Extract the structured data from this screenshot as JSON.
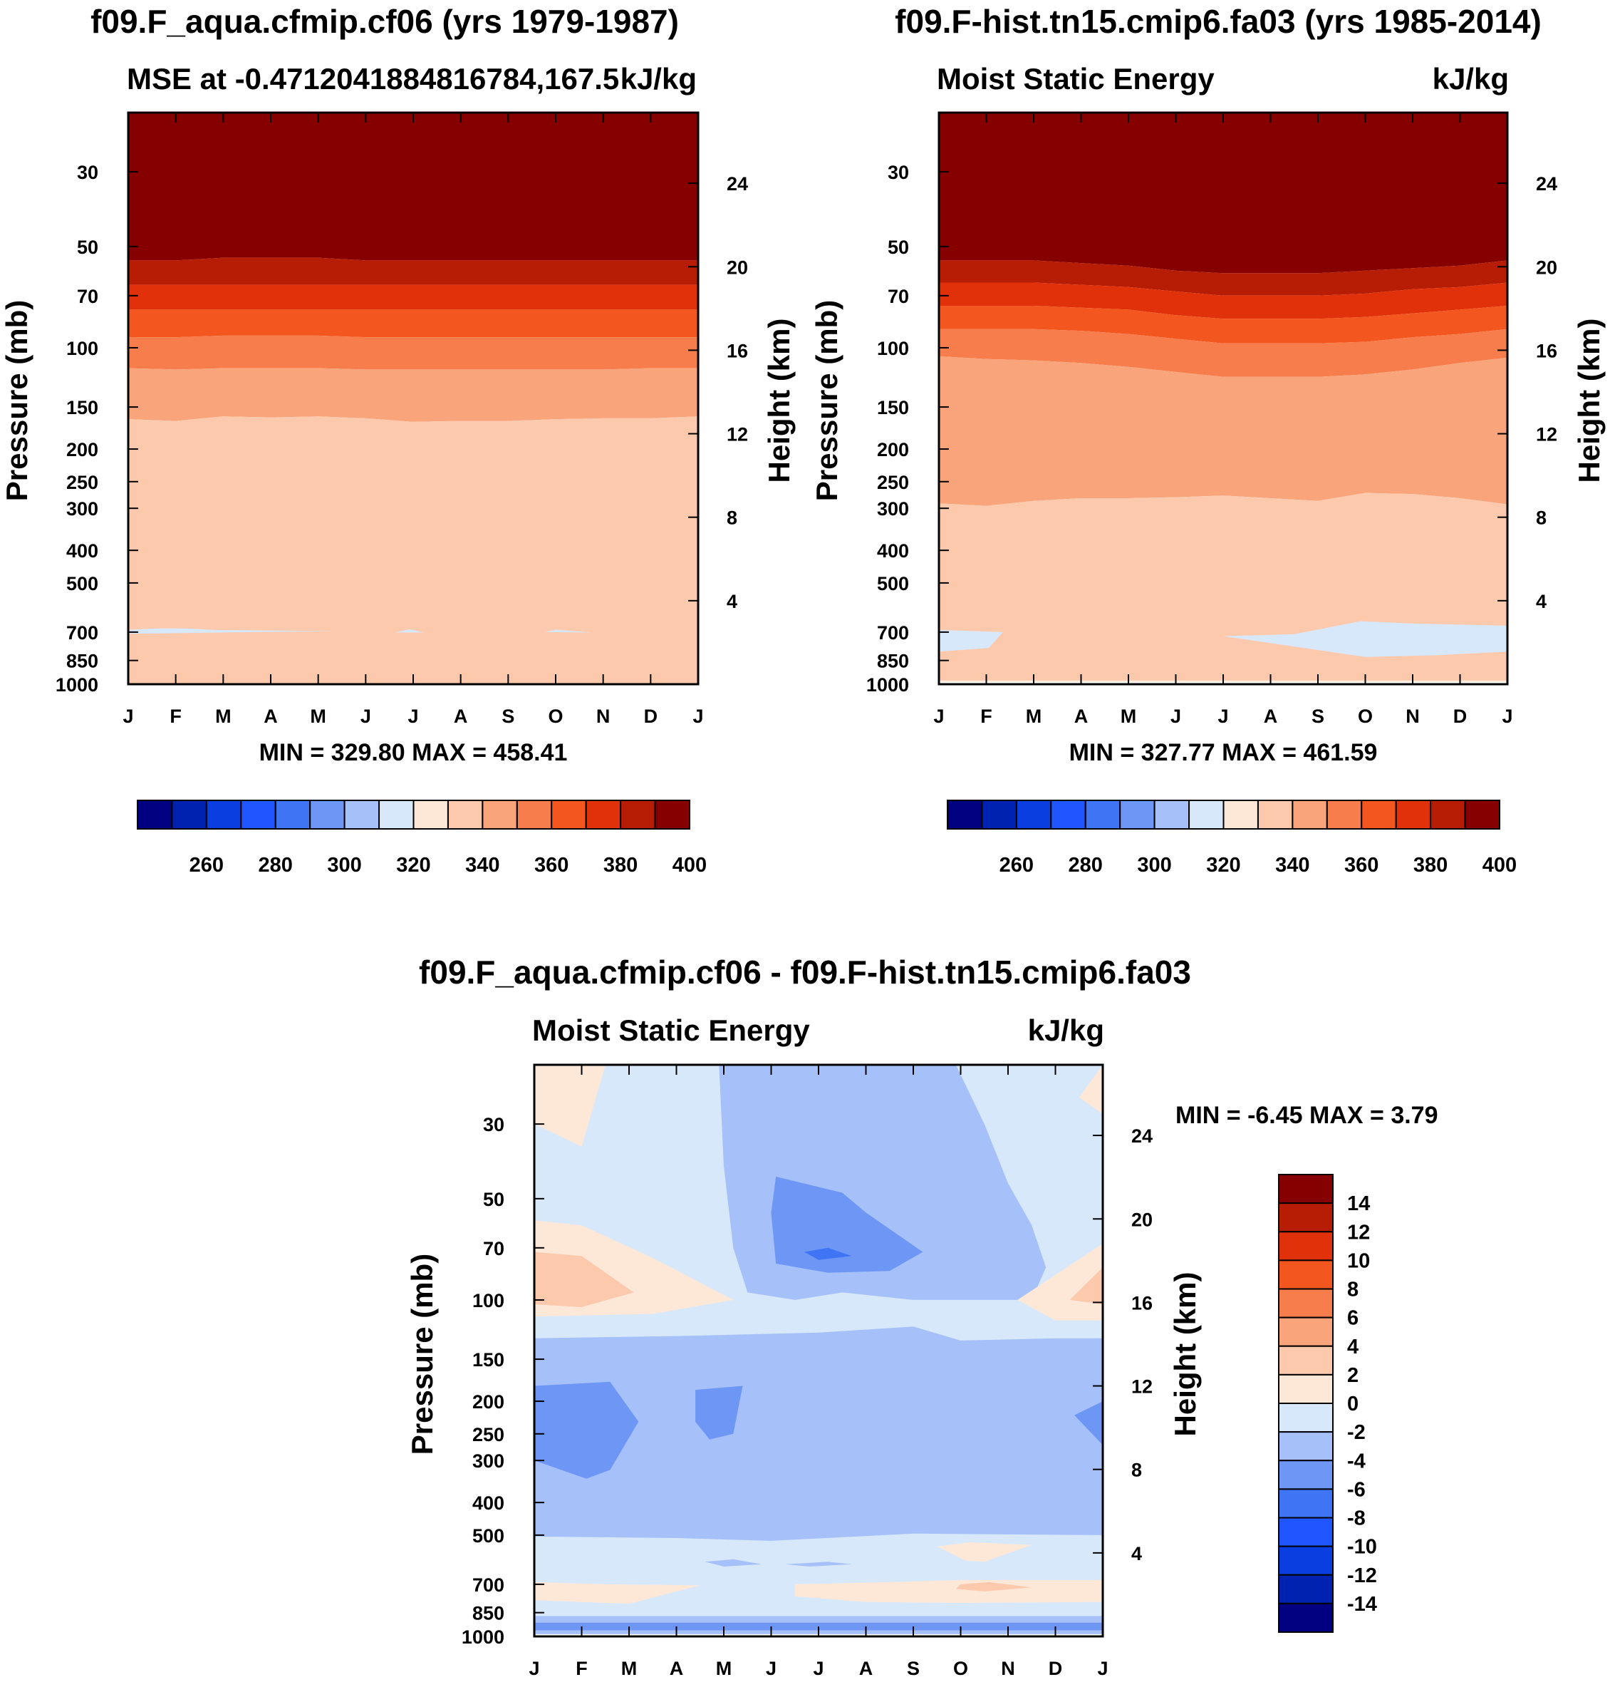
{
  "figure": {
    "panel1_title": "f09.F_aqua.cfmip.cf06 (yrs 1979-1987)",
    "panel2_title": "f09.F-hist.tn15.cmip6.fa03 (yrs 1985-2014)",
    "diff_title": "f09.F_aqua.cfmip.cf06 - f09.F-hist.tn15.cmip6.fa03"
  },
  "chart_data": [
    {
      "type": "heatmap",
      "id": "panel1",
      "title": "f09.F_aqua.cfmip.cf06 (yrs 1979-1987)",
      "left_string": "MSE at -0.4712041884816784,167.5",
      "right_string": "kJ/kg",
      "stats": "MIN = 329.80 MAX = 458.41",
      "ylabel": "Pressure (mb)",
      "ylabel_right": "Height (km)",
      "x_ticks": [
        "J",
        "F",
        "M",
        "A",
        "M",
        "J",
        "J",
        "A",
        "S",
        "O",
        "N",
        "D",
        "J"
      ],
      "pressure_ticks": [
        30,
        50,
        70,
        100,
        150,
        200,
        250,
        300,
        400,
        500,
        700,
        850,
        1000
      ],
      "height_ticks": [
        24,
        20,
        16,
        12,
        8,
        4
      ],
      "ylim_mb": [
        20,
        1000
      ],
      "colorbar": {
        "orientation": "horizontal",
        "labels": [
          260,
          280,
          300,
          320,
          340,
          360,
          380,
          400
        ]
      },
      "contour_boundaries_mb": [
        {
          "level": 400,
          "p": [
            55,
            55,
            54,
            54,
            54,
            55,
            55,
            55,
            55,
            55,
            55,
            55,
            55
          ]
        },
        {
          "level": 390,
          "p": [
            65,
            65,
            65,
            65,
            65,
            65,
            65,
            65,
            65,
            65,
            65,
            65,
            65
          ]
        },
        {
          "level": 380,
          "p": [
            77,
            77,
            77,
            77,
            77,
            77,
            77,
            77,
            77,
            77,
            77,
            77,
            77
          ]
        },
        {
          "level": 370,
          "p": [
            93,
            93,
            92,
            92,
            92,
            93,
            93,
            93,
            93,
            93,
            93,
            93,
            93
          ]
        },
        {
          "level": 360,
          "p": [
            115,
            116,
            115,
            115,
            115,
            116,
            116,
            116,
            116,
            116,
            116,
            115,
            115
          ]
        },
        {
          "level": 350,
          "p": [
            163,
            165,
            160,
            161,
            160,
            162,
            166,
            165,
            165,
            163,
            162,
            162,
            160
          ]
        },
        {
          "level": 340,
          "p": [
            990,
            990,
            990,
            990,
            990,
            990,
            990,
            990,
            990,
            990,
            990,
            990,
            990
          ]
        }
      ]
    },
    {
      "type": "heatmap",
      "id": "panel2",
      "title": "f09.F-hist.tn15.cmip6.fa03 (yrs 1985-2014)",
      "left_string": "Moist Static Energy",
      "right_string": "kJ/kg",
      "stats": "MIN = 327.77 MAX = 461.59",
      "ylabel": "Pressure (mb)",
      "ylabel_right": "Height (km)",
      "x_ticks": [
        "J",
        "F",
        "M",
        "A",
        "M",
        "J",
        "J",
        "A",
        "S",
        "O",
        "N",
        "D",
        "J"
      ],
      "pressure_ticks": [
        30,
        50,
        70,
        100,
        150,
        200,
        250,
        300,
        400,
        500,
        700,
        850,
        1000
      ],
      "height_ticks": [
        24,
        20,
        16,
        12,
        8,
        4
      ],
      "ylim_mb": [
        20,
        1000
      ],
      "colorbar": {
        "orientation": "horizontal",
        "labels": [
          260,
          280,
          300,
          320,
          340,
          360,
          380,
          400
        ]
      },
      "contour_boundaries_mb": [
        {
          "level": 400,
          "p": [
            55,
            55,
            55,
            56,
            57,
            59,
            60,
            60,
            60,
            59,
            58,
            57,
            55
          ]
        },
        {
          "level": 390,
          "p": [
            64,
            64,
            64,
            65,
            66,
            68,
            70,
            70,
            70,
            69,
            67,
            66,
            64
          ]
        },
        {
          "level": 380,
          "p": [
            75,
            75,
            75,
            76,
            77,
            80,
            82,
            82,
            82,
            81,
            79,
            77,
            75
          ]
        },
        {
          "level": 370,
          "p": [
            88,
            88,
            88,
            89,
            91,
            94,
            97,
            97,
            97,
            96,
            93,
            91,
            88
          ]
        },
        {
          "level": 360,
          "p": [
            106,
            108,
            109,
            111,
            114,
            118,
            122,
            122,
            122,
            120,
            116,
            111,
            107
          ]
        },
        {
          "level": 350,
          "p": [
            290,
            295,
            285,
            280,
            280,
            278,
            275,
            280,
            285,
            270,
            272,
            280,
            292
          ]
        },
        {
          "level": 340,
          "p": [
            955,
            955,
            955,
            955,
            955,
            955,
            955,
            955,
            955,
            955,
            955,
            955,
            955
          ]
        }
      ]
    },
    {
      "type": "heatmap",
      "id": "difference",
      "title": "f09.F_aqua.cfmip.cf06 - f09.F-hist.tn15.cmip6.fa03",
      "left_string": "Moist Static Energy",
      "right_string": "kJ/kg",
      "stats": "MIN =  -6.45 MAX =   3.79",
      "ylabel": "Pressure (mb)",
      "ylabel_right": "Height (km)",
      "x_ticks": [
        "J",
        "F",
        "M",
        "A",
        "M",
        "J",
        "J",
        "A",
        "S",
        "O",
        "N",
        "D",
        "J"
      ],
      "pressure_ticks": [
        30,
        50,
        70,
        100,
        150,
        200,
        250,
        300,
        400,
        500,
        700,
        850,
        1000
      ],
      "height_ticks": [
        24,
        20,
        16,
        12,
        8,
        4
      ],
      "ylim_mb": [
        20,
        1000
      ],
      "colorbar": {
        "orientation": "vertical",
        "labels": [
          14,
          12,
          10,
          8,
          6,
          4,
          2,
          0,
          -2,
          -4,
          -6,
          -8,
          -10,
          -12,
          -14
        ]
      },
      "dominant_values": {
        "upper_strat_jan_feb": 1,
        "strat_mar_apr": -1,
        "strat_may_oct": -3,
        "strat_core_aug": -5,
        "lower_strat_jan_feb": 2,
        "upper_trop_150_500": -3,
        "lower_trop_500_850": -1,
        "lower_trop_pockets_700": 1,
        "near_surface": -3
      }
    }
  ]
}
